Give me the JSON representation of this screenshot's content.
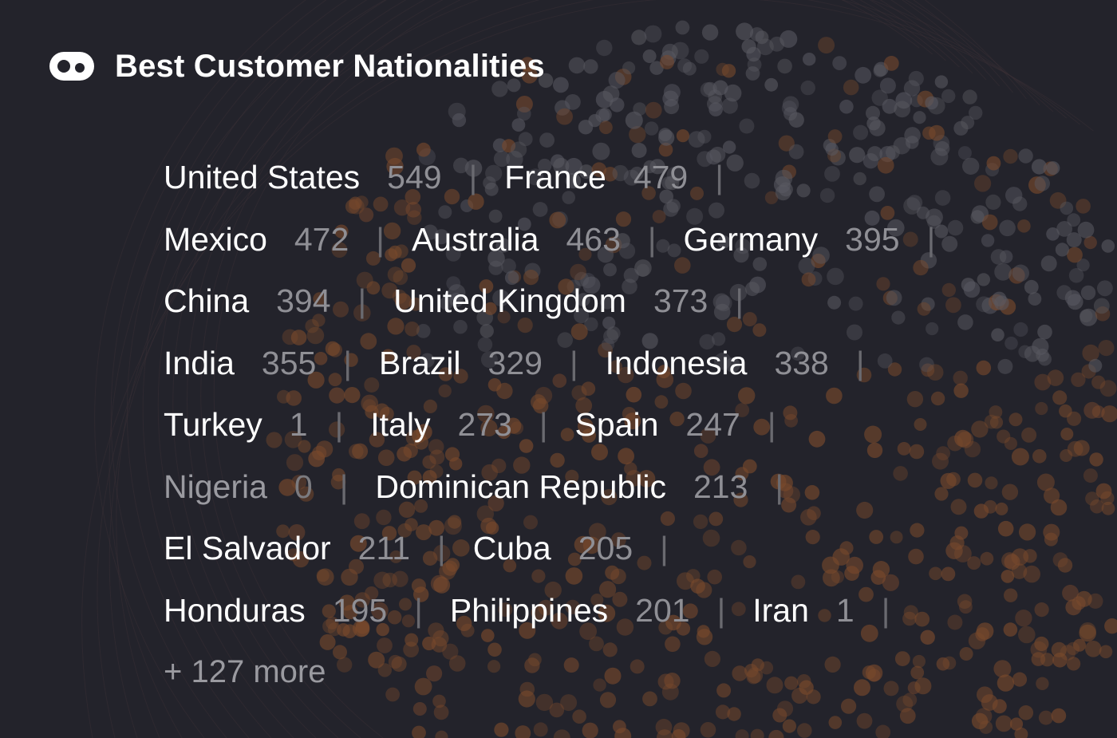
{
  "title": "Best Customer Nationalities",
  "logo_icon": "eye-toggle-icon",
  "rows": [
    [
      {
        "name": "United States",
        "count": "549"
      },
      {
        "name": "France",
        "count": "479"
      }
    ],
    [
      {
        "name": "Mexico",
        "count": "472"
      },
      {
        "name": "Australia",
        "count": "463"
      },
      {
        "name": "Germany",
        "count": "395"
      }
    ],
    [
      {
        "name": "China",
        "count": "394"
      },
      {
        "name": "United Kingdom",
        "count": "373"
      }
    ],
    [
      {
        "name": "India",
        "count": "355"
      },
      {
        "name": "Brazil",
        "count": "329"
      },
      {
        "name": "Indonesia",
        "count": "338"
      }
    ],
    [
      {
        "name": "Turkey",
        "count": "1"
      },
      {
        "name": "Italy",
        "count": "273"
      },
      {
        "name": "Spain",
        "count": "247"
      }
    ],
    [
      {
        "name": "Nigeria",
        "count": "0",
        "dim": true
      },
      {
        "name": "Dominican Republic",
        "count": "213"
      }
    ],
    [
      {
        "name": "El Salvador",
        "count": "211"
      },
      {
        "name": "Cuba",
        "count": "205"
      }
    ],
    [
      {
        "name": "Honduras",
        "count": "195"
      },
      {
        "name": "Philippines",
        "count": "201"
      },
      {
        "name": "Iran",
        "count": "1"
      }
    ]
  ],
  "separator": "|",
  "more_label": "+ 127 more",
  "colors": {
    "background": "#23232b",
    "accent_dots": "#7a4a2c",
    "gray_dots": "#5a5a62"
  }
}
